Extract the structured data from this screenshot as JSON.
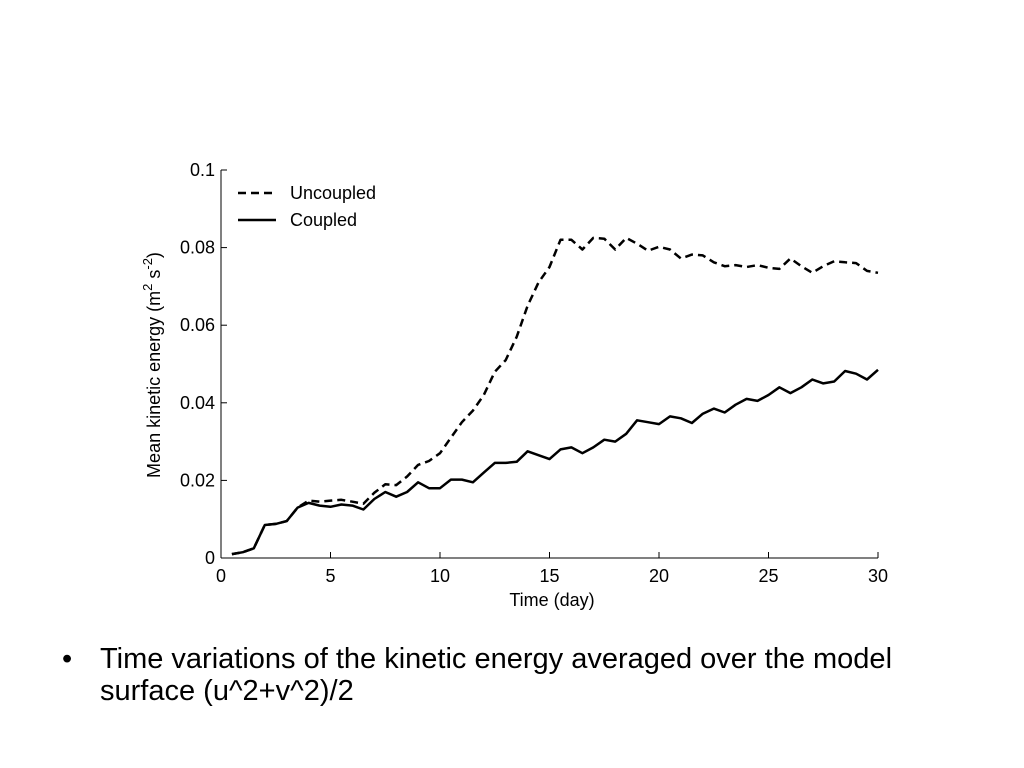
{
  "chart_data": {
    "type": "line",
    "title": "",
    "xlabel": "Time (day)",
    "ylabel": {
      "base": "Mean kinetic energy (m",
      "exp1": "2",
      "mid": " s",
      "exp2": "-2",
      "end": ")"
    },
    "xlim": [
      0,
      30
    ],
    "ylim": [
      0,
      0.1
    ],
    "xticks": [
      0,
      5,
      10,
      15,
      20,
      25,
      30
    ],
    "xtick_labels": [
      "0",
      "5",
      "10",
      "15",
      "20",
      "25",
      "30"
    ],
    "yticks": [
      0,
      0.02,
      0.04,
      0.06,
      0.08,
      0.1
    ],
    "ytick_labels": [
      "0",
      "0.02",
      "0.04",
      "0.06",
      "0.08",
      "0.1"
    ],
    "grid": false,
    "legend_position": "top-left",
    "series": [
      {
        "name": "Uncoupled",
        "style": "dashed",
        "color": "#000000",
        "x": [
          0.5,
          1.0,
          1.5,
          2.0,
          2.5,
          3.0,
          3.5,
          4.0,
          4.5,
          5.0,
          5.5,
          6.0,
          6.5,
          7.0,
          7.5,
          8.0,
          8.5,
          9.0,
          9.5,
          10.0,
          10.5,
          11.0,
          11.5,
          12.0,
          12.5,
          13.0,
          13.5,
          14.0,
          14.5,
          15.0,
          15.5,
          16.0,
          16.5,
          17.0,
          17.5,
          18.0,
          18.5,
          19.0,
          19.5,
          20.0,
          20.5,
          21.0,
          21.5,
          22.0,
          22.5,
          23.0,
          23.5,
          24.0,
          24.5,
          25.0,
          25.5,
          26.0,
          26.5,
          27.0,
          27.5,
          28.0,
          28.5,
          29.0,
          29.5,
          30.0
        ],
        "y": [
          0.001,
          0.0015,
          0.0025,
          0.0085,
          0.0088,
          0.0095,
          0.013,
          0.0148,
          0.0145,
          0.0148,
          0.015,
          0.0145,
          0.014,
          0.0168,
          0.019,
          0.0188,
          0.021,
          0.024,
          0.025,
          0.027,
          0.031,
          0.035,
          0.038,
          0.042,
          0.048,
          0.051,
          0.057,
          0.065,
          0.071,
          0.075,
          0.082,
          0.082,
          0.0795,
          0.0825,
          0.0823,
          0.0795,
          0.0825,
          0.081,
          0.0792,
          0.0802,
          0.0795,
          0.0772,
          0.0782,
          0.078,
          0.0762,
          0.0752,
          0.0755,
          0.075,
          0.0755,
          0.0748,
          0.0745,
          0.0772,
          0.0752,
          0.0735,
          0.0752,
          0.0765,
          0.0762,
          0.076,
          0.074,
          0.0735
        ]
      },
      {
        "name": "Coupled",
        "style": "solid",
        "color": "#000000",
        "x": [
          0.5,
          1.0,
          1.5,
          2.0,
          2.5,
          3.0,
          3.5,
          4.0,
          4.5,
          5.0,
          5.5,
          6.0,
          6.5,
          7.0,
          7.5,
          8.0,
          8.5,
          9.0,
          9.5,
          10.0,
          10.5,
          11.0,
          11.5,
          12.0,
          12.5,
          13.0,
          13.5,
          14.0,
          14.5,
          15.0,
          15.5,
          16.0,
          16.5,
          17.0,
          17.5,
          18.0,
          18.5,
          19.0,
          19.5,
          20.0,
          20.5,
          21.0,
          21.5,
          22.0,
          22.5,
          23.0,
          23.5,
          24.0,
          24.5,
          25.0,
          25.5,
          26.0,
          26.5,
          27.0,
          27.5,
          28.0,
          28.5,
          29.0,
          29.5,
          30.0
        ],
        "y": [
          0.001,
          0.0015,
          0.0025,
          0.0085,
          0.0088,
          0.0095,
          0.013,
          0.0142,
          0.0135,
          0.0132,
          0.0138,
          0.0135,
          0.0125,
          0.0152,
          0.017,
          0.0158,
          0.017,
          0.0195,
          0.018,
          0.018,
          0.0202,
          0.0202,
          0.0195,
          0.022,
          0.0245,
          0.0245,
          0.0248,
          0.0275,
          0.0265,
          0.0255,
          0.028,
          0.0285,
          0.027,
          0.0285,
          0.0305,
          0.03,
          0.032,
          0.0355,
          0.035,
          0.0345,
          0.0365,
          0.036,
          0.0348,
          0.0372,
          0.0385,
          0.0375,
          0.0395,
          0.041,
          0.0405,
          0.042,
          0.044,
          0.0425,
          0.044,
          0.046,
          0.045,
          0.0455,
          0.0482,
          0.0475,
          0.046,
          0.0485
        ]
      }
    ]
  },
  "caption": {
    "bullet": "•",
    "text": "Time variations of the kinetic energy averaged over the model surface (u^2+v^2)/2"
  }
}
